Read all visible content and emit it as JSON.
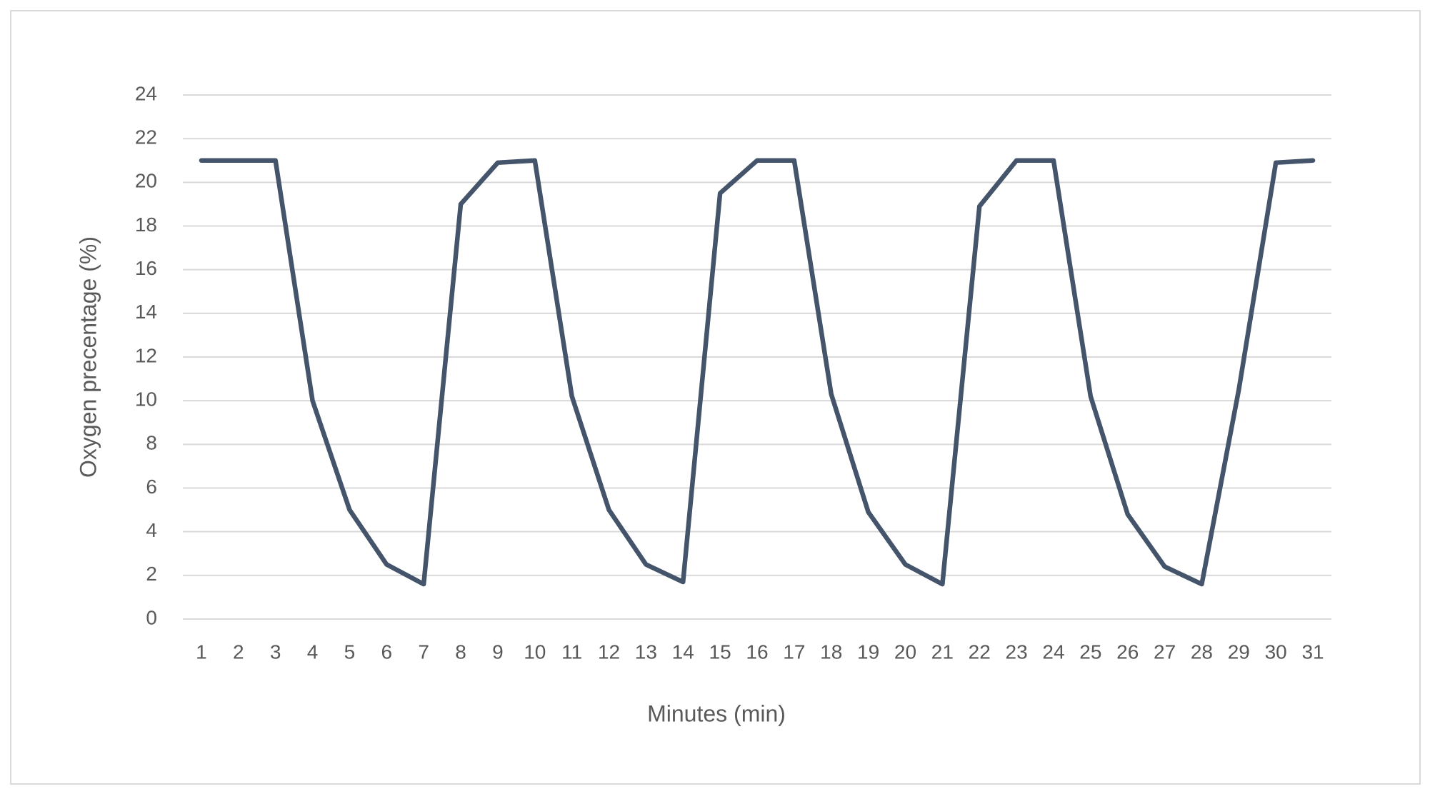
{
  "chart_data": {
    "type": "line",
    "x_label": "Minutes (min)",
    "y_label": "Oxygen precentage (%)",
    "categories": [
      "1",
      "2",
      "3",
      "4",
      "5",
      "6",
      "7",
      "8",
      "9",
      "10",
      "11",
      "12",
      "13",
      "14",
      "15",
      "16",
      "17",
      "18",
      "19",
      "20",
      "21",
      "22",
      "23",
      "24",
      "25",
      "26",
      "27",
      "28",
      "29",
      "30",
      "31"
    ],
    "series": [
      {
        "color": "#44546a",
        "values": [
          21,
          21,
          21,
          10,
          5,
          2.5,
          1.6,
          19,
          20.9,
          21,
          10.2,
          5,
          2.5,
          1.7,
          19.5,
          21,
          21,
          10.3,
          4.9,
          2.5,
          1.6,
          18.9,
          21,
          21,
          10.2,
          4.8,
          2.4,
          1.6,
          10.5,
          20.9,
          21
        ]
      }
    ],
    "ylim": [
      0,
      24
    ],
    "yticks": [
      0,
      2,
      4,
      6,
      8,
      10,
      12,
      14,
      16,
      18,
      20,
      22,
      24
    ],
    "grid": true
  }
}
